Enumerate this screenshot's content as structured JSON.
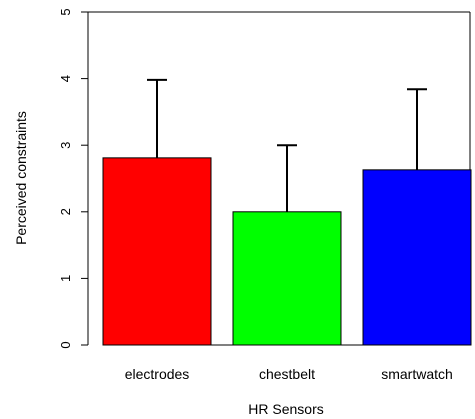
{
  "chart_data": {
    "type": "bar",
    "title": "",
    "xlabel": "HR Sensors",
    "ylabel": "Perceived constraints",
    "categories": [
      "electrodes",
      "chestbelt",
      "smartwatch"
    ],
    "values": [
      2.81,
      2.0,
      2.63
    ],
    "error_upper": [
      3.98,
      3.0,
      3.84
    ],
    "colors": [
      "#ff0000",
      "#00ff00",
      "#0000ff"
    ],
    "ylim": [
      0,
      5
    ],
    "yticks": [
      0,
      1,
      2,
      3,
      4,
      5
    ],
    "grid": false,
    "legend": "none"
  }
}
